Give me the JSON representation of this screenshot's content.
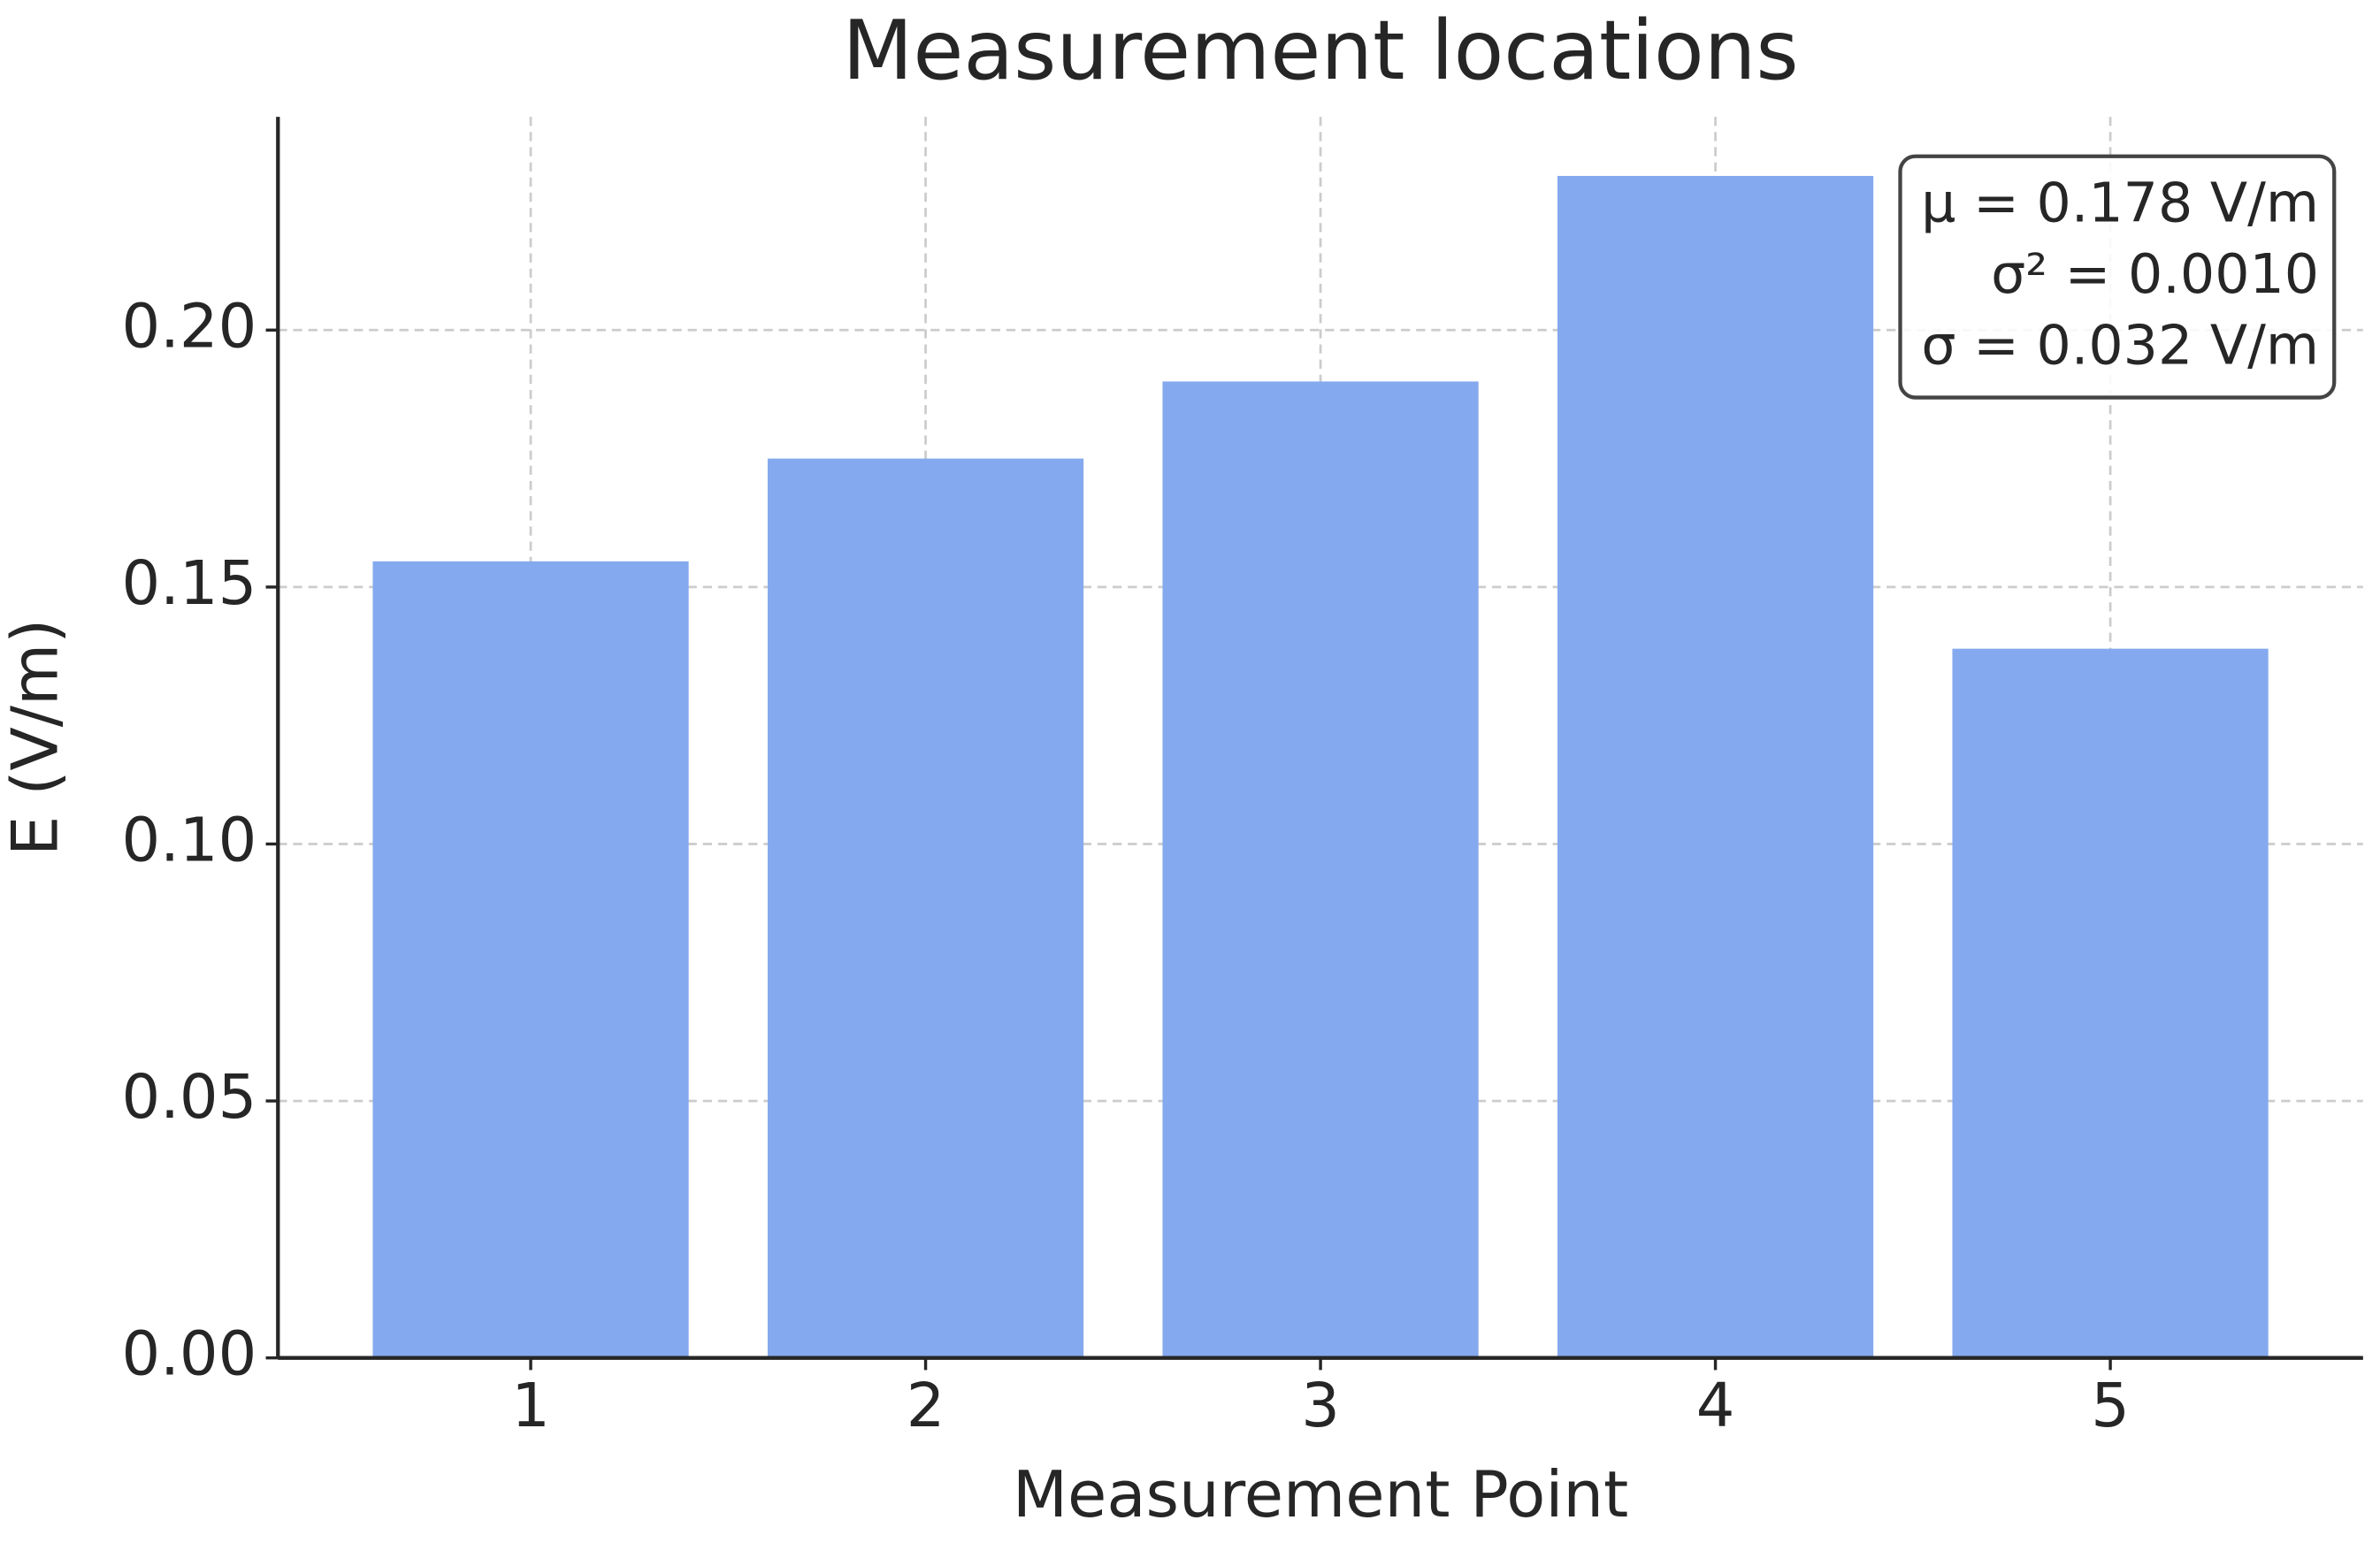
{
  "chart_data": {
    "type": "bar",
    "title": "Measurement locations",
    "x_label": "Measurement Point",
    "y_label": "E (V/m)",
    "categories": [
      "1",
      "2",
      "3",
      "4",
      "5"
    ],
    "values": [
      0.155,
      0.175,
      0.19,
      0.23,
      0.138
    ],
    "color": "#84a9ee",
    "ylim": [
      0,
      0.2415
    ],
    "yticks": [
      {
        "value": 0,
        "label": "0.00"
      },
      {
        "value": 0.05,
        "label": "0.05"
      },
      {
        "value": 0.1,
        "label": "0.10"
      },
      {
        "value": 0.15,
        "label": "0.15"
      },
      {
        "value": 0.2,
        "label": "0.20"
      }
    ],
    "grid": true,
    "annotation": [
      "μ = 0.178 V/m",
      "σ² = 0.0010",
      "σ = 0.032 V/m"
    ]
  }
}
